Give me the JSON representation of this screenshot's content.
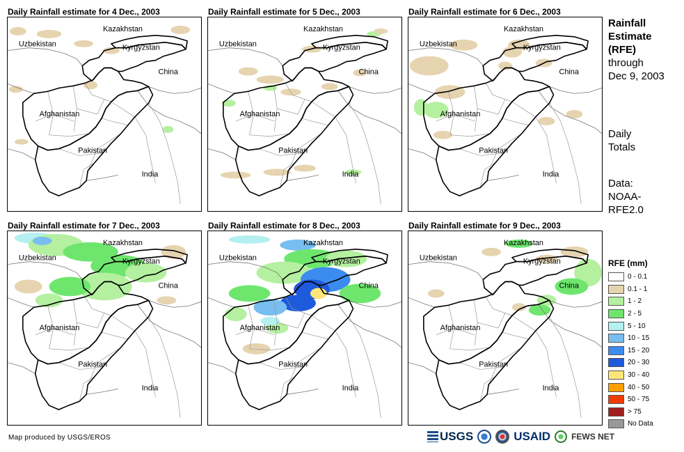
{
  "panels": [
    {
      "title": "Daily Rainfall estimate for 4 Dec., 2003"
    },
    {
      "title": "Daily Rainfall estimate for 5 Dec., 2003"
    },
    {
      "title": "Daily Rainfall estimate for 6 Dec., 2003"
    },
    {
      "title": "Daily Rainfall estimate for 7 Dec., 2003"
    },
    {
      "title": "Daily Rainfall estimate for 8 Dec., 2003"
    },
    {
      "title": "Daily Rainfall estimate for 9 Dec., 2003"
    }
  ],
  "map_labels": {
    "kazakhstan": "Kazakhstan",
    "uzbekistan": "Uzbekistan",
    "kyrgyzstan": "Kyrgyzstan",
    "china": "China",
    "afghanistan": "Afghanistan",
    "pakistan": "Pakistan",
    "india": "India"
  },
  "side": {
    "title_line1": "Rainfall",
    "title_line2": "Estimate",
    "title_line3": "(RFE)",
    "title_line4": "through",
    "title_line5": "Dec 9, 2003",
    "daily_line1": "Daily",
    "daily_line2": "Totals",
    "data_line1": "Data:",
    "data_line2": "NOAA-",
    "data_line3": "RFE2.0"
  },
  "legend": {
    "title": "RFE (mm)",
    "items": [
      {
        "label": "0 - 0.1",
        "color": "#ffffff"
      },
      {
        "label": "0.1 - 1",
        "color": "#e6d4b0"
      },
      {
        "label": "1 - 2",
        "color": "#b4f0a0"
      },
      {
        "label": "2 - 5",
        "color": "#6ee66e"
      },
      {
        "label": "5 - 10",
        "color": "#b4f0f0"
      },
      {
        "label": "10 - 15",
        "color": "#78bef0"
      },
      {
        "label": "15 - 20",
        "color": "#3c8cf0"
      },
      {
        "label": "20 - 30",
        "color": "#1e5adc"
      },
      {
        "label": "30 - 40",
        "color": "#ffe678"
      },
      {
        "label": "40 - 50",
        "color": "#ffa000"
      },
      {
        "label": "50 - 75",
        "color": "#f03c00"
      },
      {
        "label": "> 75",
        "color": "#a01e1e"
      },
      {
        "label": "No Data",
        "color": "#999999"
      }
    ]
  },
  "credit": "Map produced by USGS/EROS",
  "logos": {
    "usgs": "USGS",
    "usaid": "USAID",
    "fews": "FEWS NET"
  }
}
